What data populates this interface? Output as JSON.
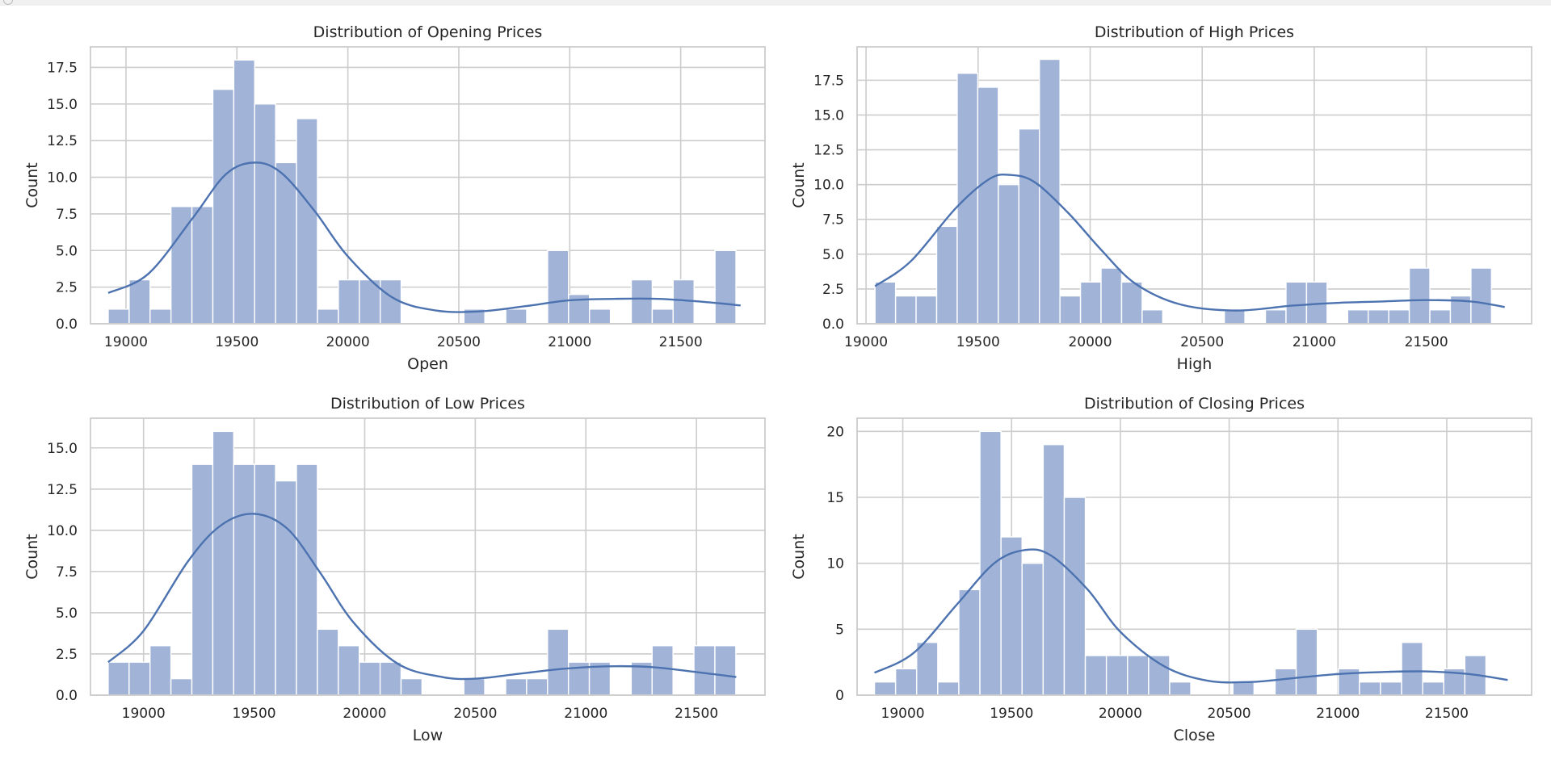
{
  "chart_data": [
    {
      "type": "bar",
      "title": "Distribution of Opening Prices",
      "xlabel": "Open",
      "ylabel": "Count",
      "xlim": [
        18840,
        21880
      ],
      "ylim": [
        0,
        18.9
      ],
      "xticks": [
        19000,
        19500,
        20000,
        20500,
        21000,
        21500
      ],
      "yticks": [
        0.0,
        2.5,
        5.0,
        7.5,
        10.0,
        12.5,
        15.0,
        17.5
      ],
      "ytick_decimals": 1,
      "grid": true,
      "bin_start": 18920,
      "bin_width": 94.3,
      "counts": [
        1,
        3,
        1,
        8,
        8,
        16,
        18,
        15,
        11,
        14,
        1,
        3,
        3,
        3,
        0,
        0,
        0,
        1,
        0,
        1,
        0,
        5,
        2,
        1,
        0,
        3,
        1,
        3,
        0,
        5
      ],
      "kde": {
        "x": [
          18920,
          19100,
          19300,
          19450,
          19580,
          19700,
          19850,
          20000,
          20200,
          20400,
          20600,
          20800,
          21000,
          21200,
          21400,
          21600,
          21770
        ],
        "y": [
          2.1,
          3.4,
          7.2,
          10.2,
          11.0,
          10.3,
          7.7,
          4.6,
          1.8,
          0.9,
          0.85,
          1.2,
          1.6,
          1.7,
          1.7,
          1.5,
          1.25
        ]
      },
      "bar_color": "#a1b4d8",
      "line_color": "#4c72b0"
    },
    {
      "type": "bar",
      "title": "Distribution of High Prices",
      "xlabel": "High",
      "ylabel": "Count",
      "xlim": [
        18960,
        21970
      ],
      "ylim": [
        0,
        19.9
      ],
      "xticks": [
        19000,
        19500,
        20000,
        20500,
        21000,
        21500
      ],
      "yticks": [
        0.0,
        2.5,
        5.0,
        7.5,
        10.0,
        12.5,
        15.0,
        17.5
      ],
      "ytick_decimals": 1,
      "grid": true,
      "bin_start": 19040,
      "bin_width": 91.7,
      "counts": [
        3,
        2,
        2,
        7,
        18,
        17,
        10,
        14,
        19,
        2,
        3,
        4,
        3,
        1,
        0,
        0,
        0,
        1,
        0,
        1,
        3,
        3,
        0,
        1,
        1,
        1,
        4,
        1,
        2,
        4
      ],
      "kde": {
        "x": [
          19040,
          19200,
          19400,
          19550,
          19640,
          19750,
          19900,
          20050,
          20200,
          20400,
          20650,
          20900,
          21100,
          21300,
          21500,
          21700,
          21850
        ],
        "y": [
          2.7,
          4.5,
          8.3,
          10.4,
          10.7,
          10.2,
          8.0,
          5.3,
          2.9,
          1.4,
          0.95,
          1.3,
          1.5,
          1.6,
          1.7,
          1.6,
          1.2
        ]
      },
      "bar_color": "#a1b4d8",
      "line_color": "#4c72b0"
    },
    {
      "type": "bar",
      "title": "Distribution of Low Prices",
      "xlabel": "Low",
      "ylabel": "Count",
      "xlim": [
        18760,
        21810
      ],
      "ylim": [
        0,
        16.8
      ],
      "xticks": [
        19000,
        19500,
        20000,
        20500,
        21000,
        21500
      ],
      "yticks": [
        0.0,
        2.5,
        5.0,
        7.5,
        10.0,
        12.5,
        15.0
      ],
      "ytick_decimals": 1,
      "grid": true,
      "bin_start": 18840,
      "bin_width": 94.6,
      "counts": [
        2,
        2,
        3,
        1,
        14,
        16,
        14,
        14,
        13,
        14,
        4,
        3,
        2,
        2,
        1,
        0,
        0,
        1,
        0,
        1,
        1,
        4,
        2,
        2,
        0,
        2,
        3,
        0,
        3,
        3
      ],
      "kde": {
        "x": [
          18840,
          19000,
          19200,
          19350,
          19500,
          19650,
          19800,
          19950,
          20150,
          20350,
          20500,
          20700,
          20900,
          21100,
          21300,
          21500,
          21680
        ],
        "y": [
          2.0,
          3.9,
          8.1,
          10.3,
          11.0,
          10.1,
          7.4,
          4.4,
          1.9,
          1.1,
          1.0,
          1.3,
          1.6,
          1.75,
          1.7,
          1.4,
          1.1
        ]
      },
      "bar_color": "#a1b4d8",
      "line_color": "#4c72b0"
    },
    {
      "type": "bar",
      "title": "Distribution of Closing Prices",
      "xlabel": "Close",
      "ylabel": "Count",
      "xlim": [
        18790,
        21890
      ],
      "ylim": [
        0,
        21
      ],
      "xticks": [
        19000,
        19500,
        20000,
        20500,
        21000,
        21500
      ],
      "yticks": [
        0,
        5,
        10,
        15,
        20
      ],
      "ytick_decimals": 0,
      "grid": true,
      "bin_start": 18870,
      "bin_width": 96.9,
      "counts": [
        1,
        2,
        4,
        1,
        8,
        20,
        12,
        10,
        19,
        15,
        3,
        3,
        3,
        3,
        1,
        0,
        0,
        1,
        0,
        2,
        5,
        0,
        2,
        1,
        1,
        4,
        1,
        2,
        3,
        0
      ],
      "kde": {
        "x": [
          18870,
          19050,
          19250,
          19420,
          19560,
          19680,
          19850,
          20000,
          20200,
          20400,
          20600,
          20800,
          21000,
          21200,
          21400,
          21600,
          21780
        ],
        "y": [
          1.7,
          3.2,
          6.9,
          10.0,
          11.0,
          10.6,
          8.0,
          4.8,
          2.2,
          1.1,
          1.0,
          1.3,
          1.6,
          1.75,
          1.8,
          1.6,
          1.15
        ]
      },
      "bar_color": "#a1b4d8",
      "line_color": "#4c72b0"
    }
  ]
}
